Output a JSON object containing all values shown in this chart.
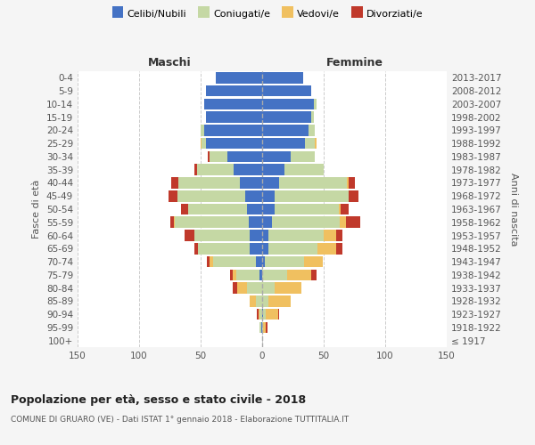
{
  "age_groups": [
    "100+",
    "95-99",
    "90-94",
    "85-89",
    "80-84",
    "75-79",
    "70-74",
    "65-69",
    "60-64",
    "55-59",
    "50-54",
    "45-49",
    "40-44",
    "35-39",
    "30-34",
    "25-29",
    "20-24",
    "15-19",
    "10-14",
    "5-9",
    "0-4"
  ],
  "birth_years": [
    "≤ 1917",
    "1918-1922",
    "1923-1927",
    "1928-1932",
    "1933-1937",
    "1938-1942",
    "1943-1947",
    "1948-1952",
    "1953-1957",
    "1958-1962",
    "1963-1967",
    "1968-1972",
    "1973-1977",
    "1978-1982",
    "1983-1987",
    "1988-1992",
    "1993-1997",
    "1998-2002",
    "2003-2007",
    "2008-2012",
    "2013-2017"
  ],
  "maschi": {
    "celibi": [
      0,
      1,
      0,
      0,
      0,
      2,
      5,
      10,
      10,
      11,
      12,
      14,
      18,
      23,
      28,
      46,
      47,
      46,
      47,
      46,
      38
    ],
    "coniugati": [
      0,
      1,
      2,
      5,
      12,
      19,
      35,
      42,
      45,
      60,
      48,
      55,
      50,
      30,
      15,
      3,
      3,
      0,
      0,
      0,
      0
    ],
    "vedovi": [
      0,
      0,
      1,
      5,
      8,
      3,
      3,
      0,
      0,
      1,
      0,
      0,
      0,
      0,
      0,
      1,
      0,
      0,
      0,
      0,
      0
    ],
    "divorziati": [
      0,
      0,
      1,
      0,
      4,
      2,
      2,
      3,
      8,
      3,
      6,
      7,
      6,
      2,
      1,
      0,
      0,
      0,
      0,
      0,
      0
    ]
  },
  "femmine": {
    "nubili": [
      0,
      0,
      1,
      0,
      0,
      0,
      2,
      5,
      5,
      8,
      10,
      10,
      14,
      18,
      23,
      35,
      38,
      40,
      42,
      40,
      33
    ],
    "coniugate": [
      0,
      1,
      2,
      5,
      10,
      20,
      32,
      40,
      45,
      55,
      52,
      60,
      55,
      32,
      20,
      8,
      5,
      2,
      2,
      0,
      0
    ],
    "vedove": [
      0,
      2,
      10,
      18,
      22,
      20,
      15,
      15,
      10,
      5,
      2,
      0,
      1,
      0,
      0,
      1,
      0,
      0,
      0,
      0,
      0
    ],
    "divorziate": [
      0,
      1,
      1,
      0,
      0,
      4,
      0,
      5,
      5,
      12,
      6,
      8,
      5,
      0,
      0,
      0,
      0,
      0,
      0,
      0,
      0
    ]
  },
  "colors": {
    "celibi_nubili": "#4472c4",
    "coniugati": "#c5d8a4",
    "vedovi": "#f0c060",
    "divorziati": "#c0392b"
  },
  "xlim": 150,
  "title": "Popolazione per età, sesso e stato civile - 2018",
  "subtitle": "COMUNE DI GRUARO (VE) - Dati ISTAT 1° gennaio 2018 - Elaborazione TUTTITALIA.IT",
  "xlabel_left": "Maschi",
  "xlabel_right": "Femmine",
  "ylabel_left": "Fasce di età",
  "ylabel_right": "Anni di nascita",
  "background_color": "#f5f5f5",
  "plot_bg": "#ffffff"
}
